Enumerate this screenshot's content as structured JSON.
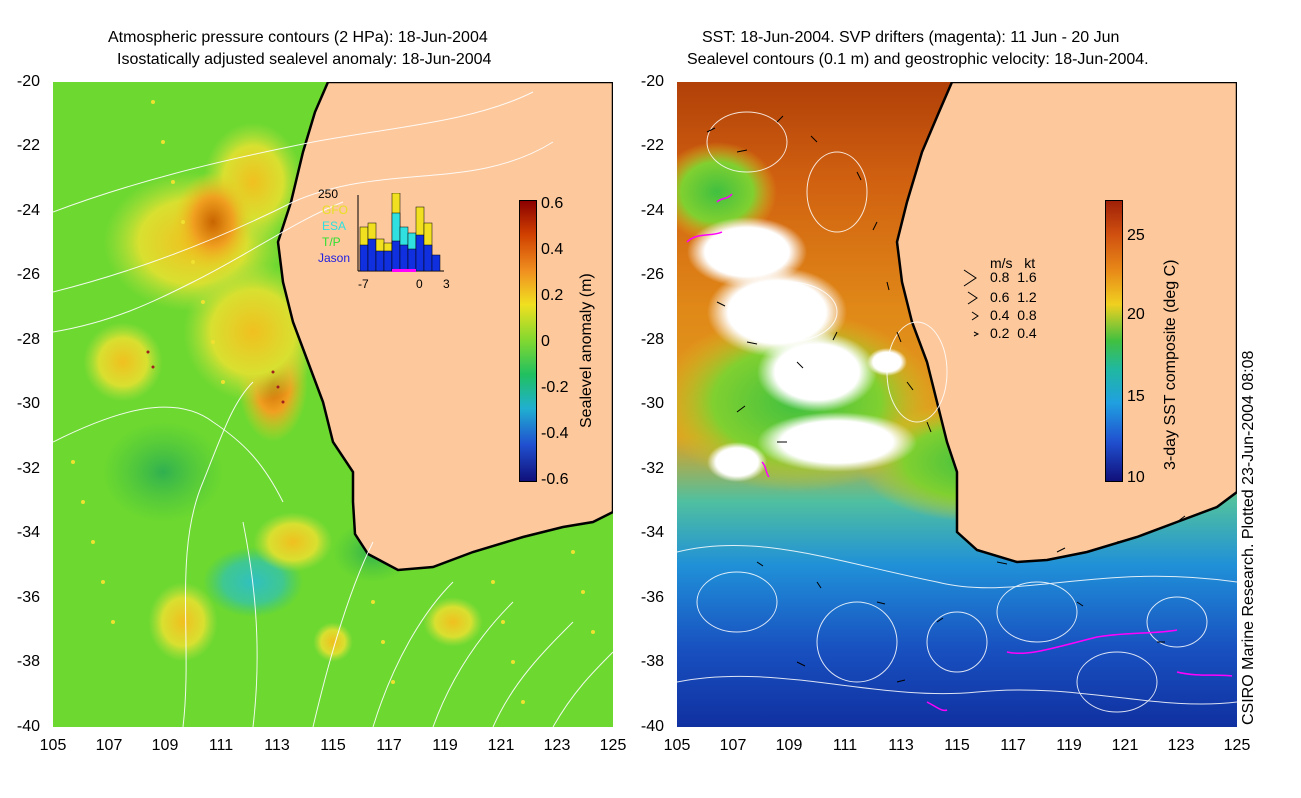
{
  "left_panel": {
    "title_line1": "Atmospheric pressure contours (2 HPa): 18-Jun-2004",
    "title_line2": "Isostatically adjusted sealevel anomaly: 18-Jun-2004",
    "colorbar_label": "Sealevel anomaly (m)",
    "colorbar_ticks": [
      "0.6",
      "0.4",
      "0.2",
      "0",
      "-0.2",
      "-0.4",
      "-0.6"
    ],
    "inset": {
      "y_max": "250",
      "legend": [
        "GFO",
        "ESA",
        "T/P",
        "Jason"
      ],
      "x_ticks": [
        "-7",
        "0",
        "3"
      ]
    }
  },
  "right_panel": {
    "title_line1": "SST: 18-Jun-2004. SVP drifters (magenta): 11 Jun - 20 Jun",
    "title_line2": "Sealevel contours (0.1 m) and geostrophic velocity: 18-Jun-2004.",
    "colorbar_label": "3-day SST composite (deg C)",
    "colorbar_ticks": [
      "25",
      "20",
      "15",
      "10"
    ],
    "vector_key": {
      "header": "m/s   kt",
      "rows": [
        "0.8  1.6",
        "0.6  1.2",
        "0.4  0.8",
        "0.2  0.4"
      ]
    }
  },
  "axes": {
    "y_ticks": [
      "-20",
      "-22",
      "-24",
      "-26",
      "-28",
      "-30",
      "-32",
      "-34",
      "-36",
      "-38",
      "-40"
    ],
    "x_ticks": [
      "105",
      "107",
      "109",
      "111",
      "113",
      "115",
      "117",
      "119",
      "121",
      "123",
      "125"
    ]
  },
  "credit": "CSIRO Marine Research. Plotted 23-Jun-2004 08:08",
  "colors": {
    "land": "#fcc89c",
    "coast": "#000000",
    "contour": "#ffffff",
    "drifter": "#ff00ff"
  }
}
